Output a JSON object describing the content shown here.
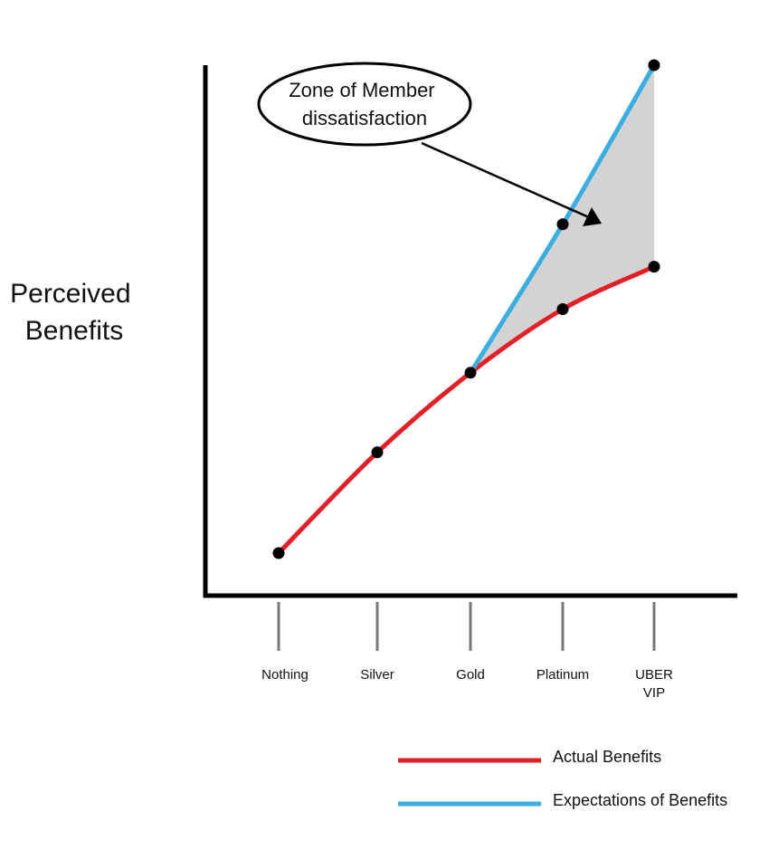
{
  "chart_data": {
    "type": "line",
    "categories": [
      "Nothing",
      "Silver",
      "Gold",
      "Platinum",
      "UBER VIP"
    ],
    "category_lines": [
      [
        "Nothing"
      ],
      [
        "Silver"
      ],
      [
        "Gold"
      ],
      [
        "Platinum"
      ],
      [
        "UBER",
        "VIP"
      ]
    ],
    "ylabel_lines": [
      "Perceived",
      "Benefits"
    ],
    "xlabel": "",
    "ylim": [
      0,
      100
    ],
    "grid": false,
    "legend_position": "bottom-right",
    "series": [
      {
        "name": "Actual Benefits",
        "color": "#e32027",
        "values": [
          8,
          27,
          42,
          54,
          62
        ]
      },
      {
        "name": "Expectations of Benefits",
        "color": "#3aaee0",
        "values": [
          null,
          null,
          42,
          70,
          100
        ]
      }
    ],
    "shaded_region": {
      "between": [
        "Actual Benefits",
        "Expectations of Benefits"
      ],
      "from": "Gold",
      "to": "UBER VIP",
      "color": "#d3d3d3"
    },
    "annotation": {
      "lines": [
        "Zone of Member",
        "dissatisfaction"
      ],
      "shape": "ellipse",
      "points_to": "shaded_region"
    }
  }
}
